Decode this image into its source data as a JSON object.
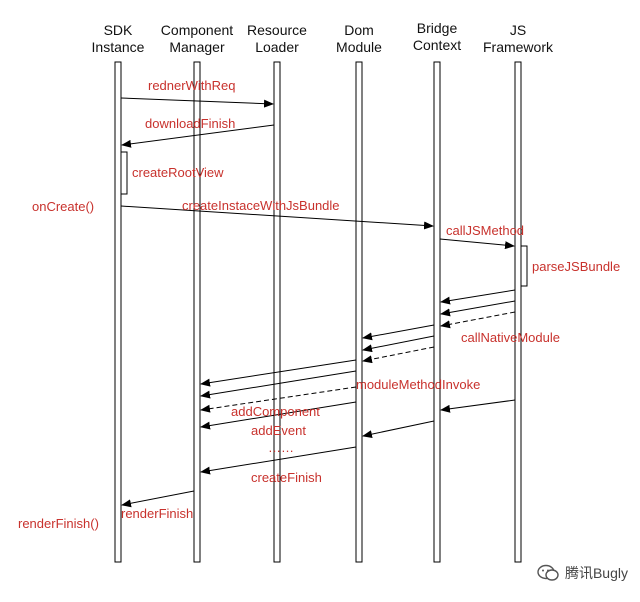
{
  "lifelines": [
    {
      "line1": "SDK",
      "line2": "Instance"
    },
    {
      "line1": "Component",
      "line2": "Manager"
    },
    {
      "line1": "Resource",
      "line2": "Loader"
    },
    {
      "line1": "Dom",
      "line2": "Module"
    },
    {
      "line1": "Bridge",
      "line2": "Context"
    },
    {
      "line1": "JS",
      "line2": "Framework"
    }
  ],
  "labels": {
    "redner_with_req": "rednerWithReq",
    "download_finish": "downloadFinish",
    "create_root_view": "createRootView",
    "on_create": "onCreate()",
    "create_instance": "createInstaceWithJsBundle",
    "call_js_method": "callJSMethod",
    "parse_js_bundle": "parseJSBundle",
    "call_native_module": "callNativeModule",
    "module_method_invoke": "moduleMethodInvoke",
    "add_component": "addComponent",
    "add_event": "addEvent",
    "ellipsis": "……",
    "create_finish": "createFinish",
    "render_finish": "renderFinish",
    "render_finish_call": "renderFinish()"
  },
  "watermark": {
    "text": "腾讯Bugly"
  },
  "colors": {
    "label": "#c8322d",
    "line": "#000000",
    "lifeline_fill": "#ffffff"
  }
}
